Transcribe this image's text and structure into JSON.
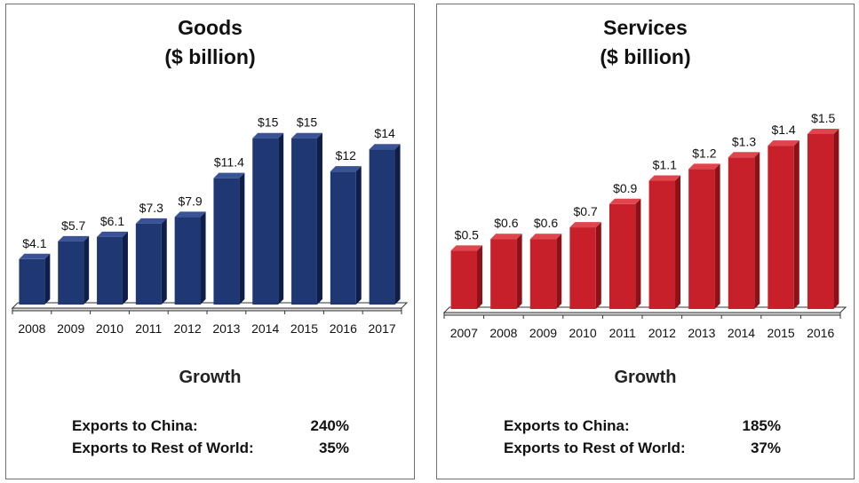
{
  "charts": [
    {
      "id": "goods",
      "title_line1": "Goods",
      "title_line2": "($ billion)",
      "colors": {
        "front": "#1f3773",
        "side": "#0e1e48",
        "top": "#3a5296"
      },
      "growth": {
        "heading": "Growth",
        "rows": [
          {
            "label": "Exports to China:",
            "value": "240%"
          },
          {
            "label": "Exports to Rest of World:",
            "value": "35%"
          }
        ]
      }
    },
    {
      "id": "services",
      "title_line1": "Services",
      "title_line2": "($ billion)",
      "colors": {
        "front": "#c8202a",
        "side": "#8e1118",
        "top": "#e0454d"
      },
      "growth": {
        "heading": "Growth",
        "rows": [
          {
            "label": "Exports to China:",
            "value": "185%"
          },
          {
            "label": "Exports to Rest of World:",
            "value": "37%"
          }
        ]
      }
    }
  ],
  "chart_data": [
    {
      "type": "bar",
      "title": "Goods ($ billion)",
      "categories": [
        "2008",
        "2009",
        "2010",
        "2011",
        "2012",
        "2013",
        "2014",
        "2015",
        "2016",
        "2017"
      ],
      "values": [
        4.1,
        5.7,
        6.1,
        7.3,
        7.9,
        11.4,
        15,
        15,
        12,
        14
      ],
      "data_labels": [
        "$4.1",
        "$5.7",
        "$6.1",
        "$7.3",
        "$7.9",
        "$11.4",
        "$15",
        "$15",
        "$12",
        "$14"
      ],
      "xlabel": "",
      "ylabel": "",
      "ylim": [
        0,
        16.5
      ],
      "grid": false,
      "legend": "none"
    },
    {
      "type": "bar",
      "title": "Services ($ billion)",
      "categories": [
        "2007",
        "2008",
        "2009",
        "2010",
        "2011",
        "2012",
        "2013",
        "2014",
        "2015",
        "2016"
      ],
      "values": [
        0.5,
        0.6,
        0.6,
        0.7,
        0.9,
        1.1,
        1.2,
        1.3,
        1.4,
        1.5
      ],
      "data_labels": [
        "$0.5",
        "$0.6",
        "$0.6",
        "$0.7",
        "$0.9",
        "$1.1",
        "$1.2",
        "$1.3",
        "$1.4",
        "$1.5"
      ],
      "xlabel": "",
      "ylabel": "",
      "ylim": [
        0,
        1.5
      ],
      "grid": false,
      "legend": "none"
    }
  ]
}
